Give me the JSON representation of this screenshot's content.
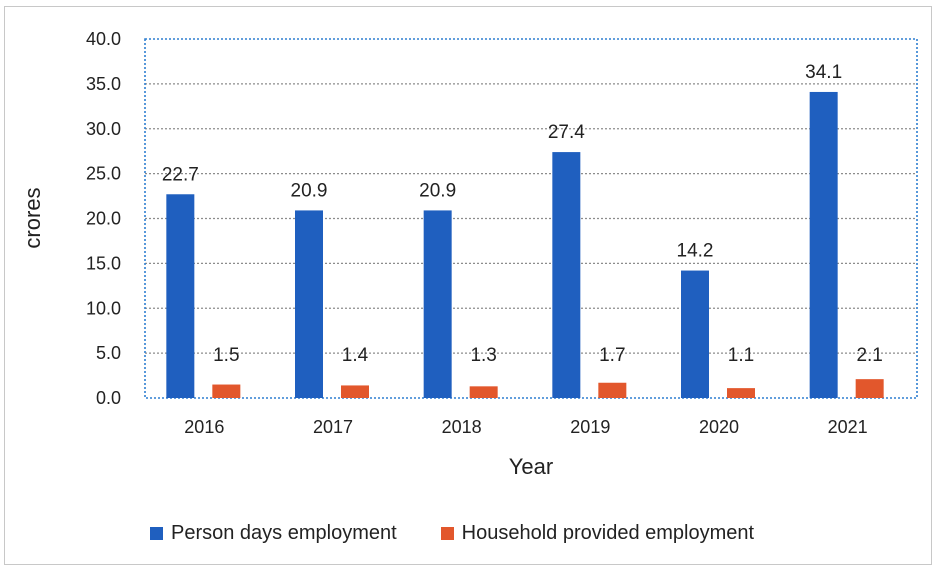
{
  "chart_data": {
    "type": "bar",
    "categories": [
      "2016",
      "2017",
      "2018",
      "2019",
      "2020",
      "2021"
    ],
    "series": [
      {
        "name": "Person days employment",
        "values": [
          22.7,
          20.9,
          20.9,
          27.4,
          14.2,
          34.1
        ],
        "color": "#1f5fbf"
      },
      {
        "name": "Household provided employment",
        "values": [
          1.5,
          1.4,
          1.3,
          1.7,
          1.1,
          2.1
        ],
        "color": "#e2572c"
      }
    ],
    "data_labels_series1": [
      "22.7",
      "20.9",
      "20.9",
      "27.4",
      "14.2",
      "34.1"
    ],
    "data_labels_series2": [
      "1.5",
      "1.4",
      "1.3",
      "1.7",
      "1.1",
      "2.1"
    ],
    "y_ticks": [
      "0.0",
      "5.0",
      "10.0",
      "15.0",
      "20.0",
      "25.0",
      "30.0",
      "35.0",
      "40.0"
    ],
    "xlabel": "Year",
    "ylabel": "crores",
    "ylim": [
      0,
      40
    ],
    "grid": true,
    "legend_position": "bottom"
  }
}
